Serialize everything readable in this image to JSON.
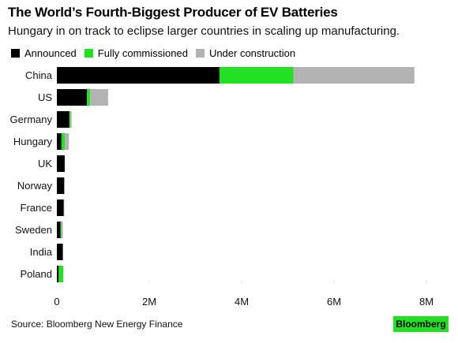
{
  "header": {
    "title": "The World’s Fourth-Biggest Producer of EV Batteries",
    "subtitle": "Hungary in on track to eclipse larger countries in scaling up manufacturing."
  },
  "footer": {
    "source": "Source: Bloomberg New Energy Finance",
    "logo_text": "Bloomberg"
  },
  "colors": {
    "announced": "#000000",
    "fully_commissioned": "#22e022",
    "under_construction": "#b3b3b3",
    "logo_bg": "#22e022"
  },
  "chart_data": {
    "type": "bar",
    "orientation": "horizontal",
    "stacked": true,
    "title": "The World’s Fourth-Biggest Producer of EV Batteries",
    "subtitle": "Hungary in on track to eclipse larger countries in scaling up manufacturing.",
    "xlabel": "",
    "ylabel": "",
    "xlim": [
      0,
      8000000
    ],
    "xticks": [
      0,
      2000000,
      4000000,
      6000000,
      8000000
    ],
    "xtick_labels": [
      "0",
      "2M",
      "4M",
      "6M",
      "8M"
    ],
    "grid": false,
    "legend_position": "top-left",
    "categories": [
      "China",
      "US",
      "Germany",
      "Hungary",
      "UK",
      "Norway",
      "France",
      "Sweden",
      "India",
      "Poland"
    ],
    "series": [
      {
        "name": "Announced",
        "color": "#000000",
        "values": [
          3520000,
          650000,
          270000,
          100000,
          170000,
          160000,
          150000,
          80000,
          130000,
          40000
        ]
      },
      {
        "name": "Fully commissioned",
        "color": "#22e022",
        "values": [
          1600000,
          70000,
          20000,
          70000,
          0,
          0,
          0,
          20000,
          0,
          100000
        ]
      },
      {
        "name": "Under construction",
        "color": "#b3b3b3",
        "values": [
          2620000,
          390000,
          30000,
          90000,
          0,
          0,
          10000,
          30000,
          0,
          0
        ]
      }
    ]
  }
}
